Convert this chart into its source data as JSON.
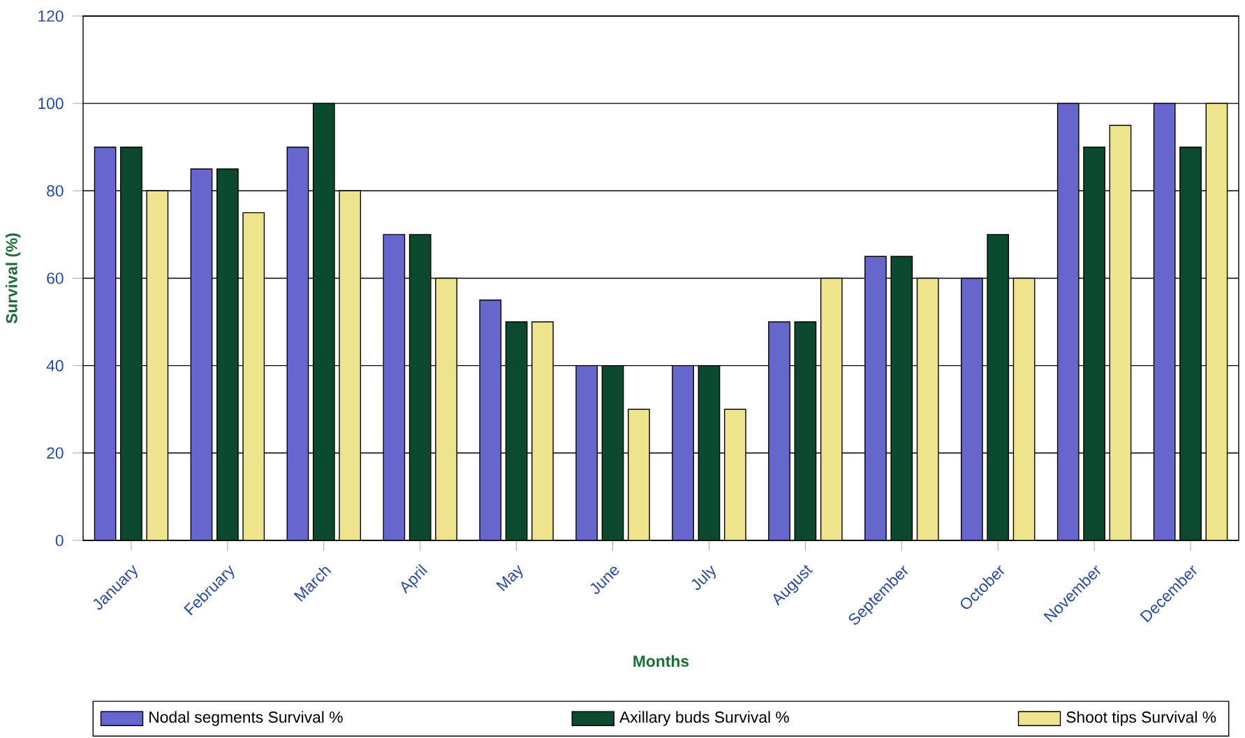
{
  "chart_data": {
    "type": "bar",
    "xlabel": "Months",
    "ylabel": "Survival (%)",
    "categories": [
      "January",
      "February",
      "March",
      "April",
      "May",
      "June",
      "July",
      "August",
      "September",
      "October",
      "November",
      "December"
    ],
    "series": [
      {
        "name": "Nodal segments Survival %",
        "color": "#6666cc",
        "values": [
          90,
          85,
          90,
          70,
          55,
          40,
          40,
          50,
          65,
          60,
          100,
          100
        ]
      },
      {
        "name": "Axillary buds Survival %",
        "color": "#0c4a30",
        "values": [
          90,
          85,
          100,
          70,
          50,
          40,
          40,
          50,
          65,
          70,
          90,
          90
        ]
      },
      {
        "name": "Shoot tips Survival %",
        "color": "#eee48e",
        "values": [
          80,
          75,
          80,
          60,
          50,
          30,
          30,
          60,
          60,
          60,
          95,
          100
        ]
      }
    ],
    "ylim": [
      0,
      120
    ],
    "yticks": [
      0,
      20,
      40,
      60,
      80,
      100,
      120
    ],
    "grid": "y",
    "legend": "bottom"
  }
}
